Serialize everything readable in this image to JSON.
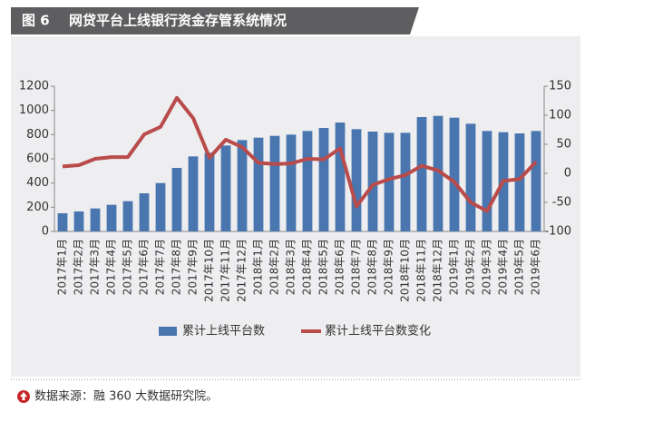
{
  "chart_data": {
    "type": "bar",
    "figure_label": "图 6",
    "title": "网贷平台上线银行资金存管系统情况",
    "source": "数据来源：融 360 大数据研究院。",
    "categories": [
      "2017年1月",
      "2017年2月",
      "2017年3月",
      "2017年4月",
      "2017年5月",
      "2017年6月",
      "2017年7月",
      "2017年8月",
      "2017年9月",
      "2017年10月",
      "2017年11月",
      "2017年12月",
      "2018年1月",
      "2018年2月",
      "2018年3月",
      "2018年4月",
      "2018年5月",
      "2018年6月",
      "2018年7月",
      "2018年8月",
      "2018年9月",
      "2018年10月",
      "2018年11月",
      "2018年12月",
      "2019年1月",
      "2019年2月",
      "2019年3月",
      "2019年4月",
      "2019年5月",
      "2019年6月"
    ],
    "series": [
      {
        "name": "累计上线平台数",
        "type": "bar",
        "color": "#4a76b0",
        "values": [
          150,
          165,
          190,
          220,
          250,
          315,
          400,
          525,
          620,
          650,
          710,
          755,
          775,
          790,
          800,
          830,
          855,
          900,
          845,
          825,
          815,
          815,
          945,
          955,
          940,
          890,
          830,
          820,
          810,
          830
        ]
      },
      {
        "name": "累计上线平台数变化",
        "type": "line",
        "axis": "y2",
        "color": "#b94b4b",
        "values": [
          12,
          14,
          25,
          28,
          28,
          67,
          80,
          130,
          95,
          27,
          58,
          45,
          18,
          16,
          17,
          25,
          24,
          43,
          -57,
          -20,
          -10,
          -3,
          13,
          5,
          -15,
          -50,
          -65,
          -13,
          -10,
          20
        ]
      }
    ],
    "ylim": [
      0,
      1200
    ],
    "yticks": [
      0,
      200,
      400,
      600,
      800,
      1000,
      1200
    ],
    "y2lim": [
      -100,
      150
    ],
    "y2ticks": [
      -100,
      -50,
      0,
      50,
      100,
      150
    ],
    "grid": false,
    "legend": "bottom"
  }
}
